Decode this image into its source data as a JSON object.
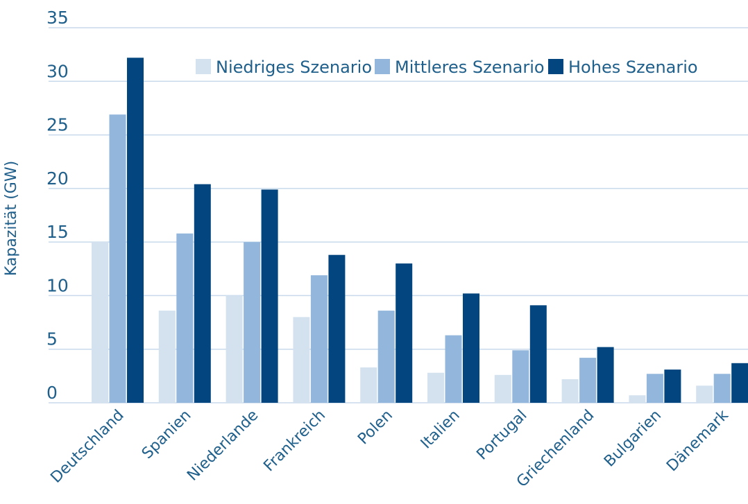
{
  "chart_data": {
    "type": "bar",
    "ylabel": "Kapazität (GW)",
    "ylim": [
      0,
      35
    ],
    "yticks": [
      0,
      5,
      10,
      15,
      20,
      25,
      30,
      35
    ],
    "grid": true,
    "legend_position": "top-right",
    "categories": [
      "Deutschland",
      "Spanien",
      "Niederlande",
      "Frankreich",
      "Polen",
      "Italien",
      "Portugal",
      "Griechenland",
      "Bulgarien",
      "Dänemark"
    ],
    "series": [
      {
        "name": "Niedriges Szenario",
        "color": "#d4e2f0",
        "values": [
          15,
          8.6,
          10,
          8,
          3.3,
          2.8,
          2.6,
          2.2,
          0.7,
          1.6
        ]
      },
      {
        "name": "Mittleres Szenario",
        "color": "#93b7dc",
        "values": [
          26.9,
          15.8,
          15,
          11.9,
          8.6,
          6.3,
          4.9,
          4.2,
          2.7,
          2.7
        ]
      },
      {
        "name": "Hohes Szenario",
        "color": "#03467f",
        "values": [
          32.2,
          20.4,
          19.9,
          13.8,
          13,
          10.2,
          9.1,
          5.2,
          3.1,
          3.7
        ]
      }
    ]
  }
}
